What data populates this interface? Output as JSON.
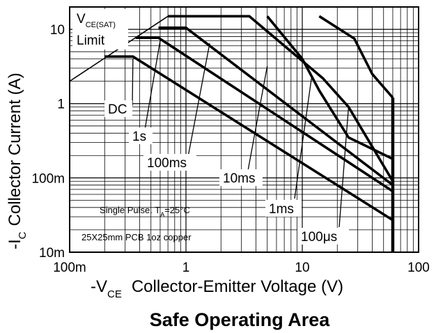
{
  "chart_data": {
    "type": "line",
    "title": "Safe Operating Area",
    "x_scale": "log",
    "y_scale": "log",
    "xlim": [
      0.1,
      100
    ],
    "ylim": [
      0.01,
      20
    ],
    "x_ticks": [
      {
        "value": 0.1,
        "label": "100m"
      },
      {
        "value": 1,
        "label": "1"
      },
      {
        "value": 10,
        "label": "10"
      },
      {
        "value": 100,
        "label": "100"
      }
    ],
    "y_ticks": [
      {
        "value": 10,
        "label": "10"
      },
      {
        "value": 1,
        "label": "1"
      },
      {
        "value": 0.1,
        "label": "100m"
      },
      {
        "value": 0.01,
        "label": "10m"
      }
    ],
    "xlabel": {
      "main": "-V",
      "sub": "CE",
      "rest": "Collector-Emitter Voltage (V)"
    },
    "ylabel": {
      "main": "-I",
      "sub": "C",
      "rest": "Collector Current (A)"
    },
    "grid": true,
    "vce_limit": {
      "line1": "V",
      "line1_sub": "CE(SAT)",
      "line2": "Limit",
      "points": [
        [
          0.1,
          2.0
        ],
        [
          0.7,
          15
        ]
      ]
    },
    "voltage_limit": {
      "x": 60,
      "y_range": [
        0.01,
        1.2
      ]
    },
    "series": [
      {
        "name": "DC",
        "points": [
          [
            0.2,
            4.3
          ],
          [
            0.35,
            4.3
          ],
          [
            60,
            0.027
          ]
        ]
      },
      {
        "name": "1s",
        "points": [
          [
            0.37,
            7.7
          ],
          [
            0.58,
            7.7
          ],
          [
            60,
            0.066
          ]
        ]
      },
      {
        "name": "100ms",
        "points": [
          [
            0.58,
            10.5
          ],
          [
            1.0,
            10.5
          ],
          [
            60,
            0.08
          ]
        ]
      },
      {
        "name": "10ms",
        "points": [
          [
            0.7,
            15
          ],
          [
            3.5,
            15
          ],
          [
            15,
            2.2
          ],
          [
            25,
            0.9
          ],
          [
            60,
            0.09
          ]
        ]
      },
      {
        "name": "1ms",
        "points": [
          [
            5,
            15
          ],
          [
            10,
            4.0
          ],
          [
            14,
            1.5
          ],
          [
            25,
            0.35
          ],
          [
            60,
            0.18
          ]
        ]
      },
      {
        "name": "100μs",
        "points": [
          [
            14,
            15
          ],
          [
            28,
            7.5
          ],
          [
            40,
            2.5
          ],
          [
            60,
            1.2
          ]
        ]
      }
    ],
    "labels": [
      {
        "text": "DC",
        "target": [
          0.35,
          4.0
        ]
      },
      {
        "text": "1s",
        "target": [
          0.6,
          7.0
        ]
      },
      {
        "text": "100ms",
        "target": [
          1.6,
          6.5
        ]
      },
      {
        "text": "10ms",
        "target": [
          5.0,
          3.2
        ]
      },
      {
        "text": "1ms",
        "target": [
          12,
          2.2
        ]
      },
      {
        "text": "100μs",
        "target": [
          25,
          0.9
        ]
      }
    ],
    "annotations": {
      "line1_pre": "Single Pulse. T",
      "line1_sub": "A",
      "line1_post": "=25°C",
      "line2": "25X25mm PCB  1oz copper"
    }
  }
}
